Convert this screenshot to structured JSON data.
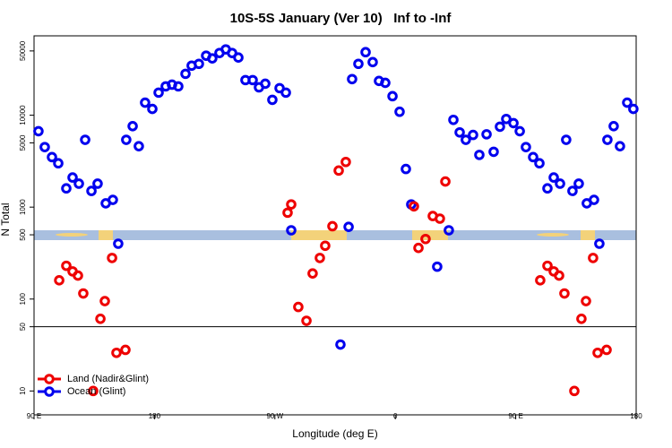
{
  "chart_data": {
    "type": "scatter",
    "title": "10S-5S January (Ver 10)   Inf to -Inf",
    "xlabel": "Longitude (deg E)",
    "ylabel": "N Total",
    "xlim": [
      90,
      540
    ],
    "xticks": [
      {
        "value": 90,
        "label": "90 E"
      },
      180,
      {
        "value": 270,
        "label": "90 W"
      },
      {
        "value": 360,
        "label": "0"
      },
      {
        "value": 450,
        "label": "90 E"
      },
      {
        "value": 540,
        "label": "180"
      }
    ],
    "ylim": [
      5.5,
      73000
    ],
    "yticks": [
      10,
      50,
      100,
      500,
      1000,
      5000,
      10000,
      50000
    ],
    "log_y": true,
    "hline": 50,
    "legend": "lower left",
    "series": [
      {
        "name": "Ocean (Glint)",
        "color": "#0000ee",
        "x": [
          93.3,
          98.0,
          103.4,
          108.1,
          114.1,
          118.8,
          123.5,
          128.2,
          132.9,
          137.5,
          143.6,
          148.9,
          152.9,
          158.9,
          163.7,
          168.3,
          173.0,
          178.4,
          183.1,
          188.4,
          193.1,
          197.8,
          203.2,
          207.8,
          213.2,
          218.6,
          223.2,
          228.6,
          233.3,
          238.0,
          242.7,
          248.0,
          253.4,
          258.1,
          262.8,
          268.1,
          273.5,
          278.2,
          282.2,
          319.0,
          325.1,
          327.7,
          332.4,
          337.8,
          343.1,
          347.8,
          352.5,
          357.9,
          363.2,
          367.9,
          371.9,
          391.3,
          400.0,
          403.4,
          408.1,
          412.7,
          418.1,
          422.8,
          428.2,
          433.5,
          438.2,
          442.9,
          448.3,
          453.0,
          457.6,
          463.0,
          467.7,
          473.7,
          478.4,
          483.1,
          487.7,
          492.4,
          497.1,
          503.1,
          508.5,
          512.5,
          518.5,
          523.2,
          527.9,
          533.3,
          537.9
        ],
        "values": [
          6700,
          4500,
          3500,
          3000,
          1600,
          2100,
          1800,
          5400,
          1500,
          1800,
          1100,
          1200,
          400,
          5400,
          7600,
          4600,
          13700,
          11700,
          17600,
          20600,
          21500,
          20600,
          28200,
          34600,
          36200,
          44400,
          41500,
          47500,
          52000,
          47500,
          42400,
          24100,
          24100,
          20100,
          22000,
          14700,
          19700,
          17600,
          560,
          32,
          610,
          24700,
          36200,
          48500,
          37800,
          23600,
          22500,
          16100,
          10900,
          2600,
          1070,
          225,
          560,
          8900,
          6500,
          5400,
          6100,
          3700,
          6200,
          4000,
          7500,
          9100,
          8200,
          6700,
          4500,
          3500,
          3000,
          1600,
          2100,
          1800,
          5400,
          1500,
          1800,
          1100,
          1200,
          400,
          5400,
          7600,
          4600,
          13700,
          11700
        ]
      },
      {
        "name": "Land (Nadir&Glint)",
        "color": "#ee0000",
        "x": [
          108.8,
          114.1,
          118.8,
          122.8,
          126.8,
          134.2,
          139.6,
          142.9,
          148.3,
          151.6,
          158.3,
          279.5,
          282.2,
          287.5,
          293.6,
          298.2,
          303.6,
          307.6,
          313.0,
          317.7,
          323.0,
          373.9,
          377.3,
          382.6,
          388.0,
          393.3,
          397.4,
          468.3,
          473.7,
          478.4,
          482.4,
          486.4,
          493.8,
          499.1,
          502.5,
          507.8,
          511.2,
          517.9
        ],
        "values": [
          160,
          230,
          200,
          180,
          115,
          10,
          61,
          95,
          280,
          26,
          28,
          870,
          1070,
          82,
          58,
          190,
          280,
          380,
          620,
          2500,
          3100,
          1020,
          360,
          450,
          800,
          750,
          1900,
          160,
          230,
          200,
          180,
          115,
          10,
          61,
          95,
          280,
          26,
          28
        ]
      }
    ]
  }
}
